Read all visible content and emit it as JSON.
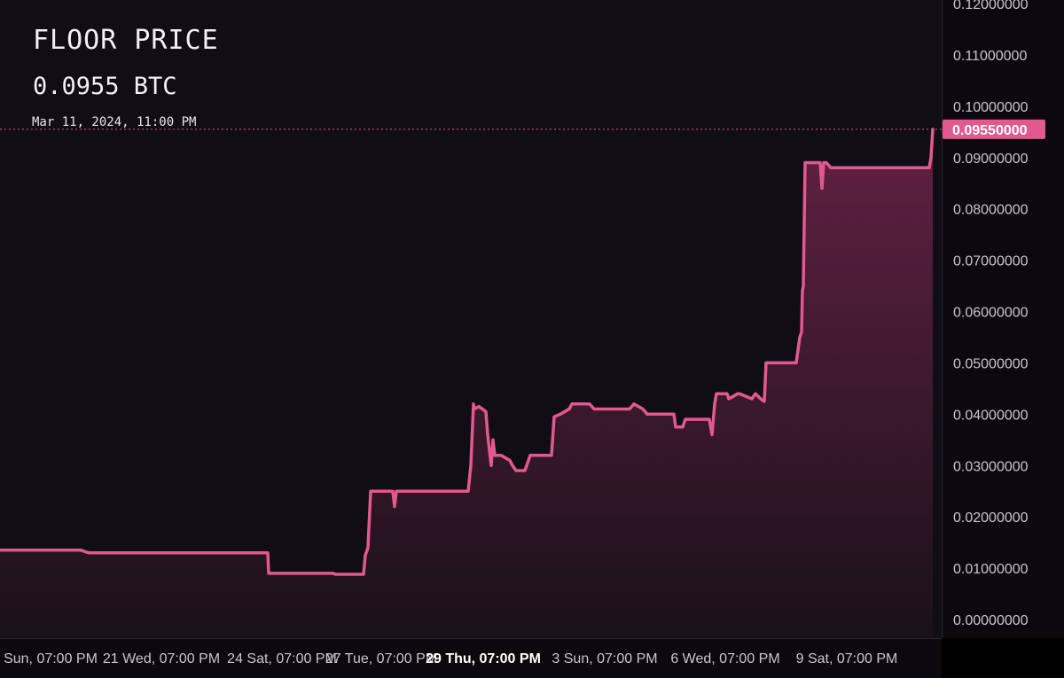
{
  "header": {
    "title": "FLOOR PRICE",
    "value": "0.0955 BTC",
    "timestamp": "Mar 11, 2024, 11:00 PM"
  },
  "current_price_label": "0.09550000",
  "colors": {
    "line": "#e0598f",
    "badge": "#e0598f",
    "fill_top": "#6b2347",
    "fill_bottom": "#1a111c",
    "plot_bg": "#110d16"
  },
  "chart_data": {
    "type": "area",
    "title": "FLOOR PRICE",
    "ylim": [
      0,
      0.12
    ],
    "yticks": [
      "0.00000000",
      "0.01000000",
      "0.02000000",
      "0.03000000",
      "0.04000000",
      "0.05000000",
      "0.06000000",
      "0.07000000",
      "0.08000000",
      "0.09000000",
      "0.10000000",
      "0.11000000",
      "0.12000000"
    ],
    "xlim": [
      0,
      1062
    ],
    "xticks": [
      {
        "x": 57,
        "label": "Sun, 07:00 PM",
        "bold": false
      },
      {
        "x": 182,
        "label": "21 Wed, 07:00 PM",
        "bold": false
      },
      {
        "x": 318,
        "label": "24 Sat, 07:00 PM",
        "bold": false
      },
      {
        "x": 430,
        "label": "27 Tue, 07:00 PM",
        "bold": false
      },
      {
        "x": 545,
        "label": "29 Thu, 07:00 PM",
        "bold": true
      },
      {
        "x": 682,
        "label": "3 Sun, 07:00 PM",
        "bold": false
      },
      {
        "x": 818,
        "label": "6 Wed, 07:00 PM",
        "bold": false
      },
      {
        "x": 955,
        "label": "9 Sat, 07:00 PM",
        "bold": false
      }
    ],
    "current_value": 0.0955,
    "x": [
      0,
      92,
      96,
      100,
      302,
      303,
      376,
      378,
      410,
      412,
      415,
      418,
      443,
      445,
      447,
      528,
      531,
      534,
      535,
      540,
      548,
      550,
      554,
      556,
      558,
      560,
      562,
      565,
      575,
      578,
      582,
      592,
      598,
      622,
      625,
      632,
      642,
      645,
      665,
      670,
      710,
      715,
      725,
      730,
      760,
      762,
      770,
      773,
      800,
      803,
      806,
      808,
      820,
      822,
      832,
      834,
      848,
      852,
      858,
      862,
      864,
      866,
      898,
      902,
      904,
      905,
      906,
      908,
      910,
      912,
      925,
      927,
      929,
      932,
      937,
      940,
      1048,
      1050,
      1052
    ],
    "y": [
      0.0135,
      0.0135,
      0.0132,
      0.013,
      0.013,
      0.009,
      0.009,
      0.0088,
      0.0088,
      0.0125,
      0.014,
      0.025,
      0.025,
      0.022,
      0.025,
      0.025,
      0.03,
      0.042,
      0.041,
      0.0415,
      0.0405,
      0.036,
      0.03,
      0.035,
      0.032,
      0.032,
      0.032,
      0.032,
      0.031,
      0.03,
      0.029,
      0.029,
      0.032,
      0.032,
      0.0395,
      0.04,
      0.041,
      0.042,
      0.042,
      0.041,
      0.041,
      0.042,
      0.041,
      0.04,
      0.04,
      0.0375,
      0.0375,
      0.039,
      0.039,
      0.036,
      0.042,
      0.044,
      0.044,
      0.043,
      0.044,
      0.044,
      0.043,
      0.044,
      0.043,
      0.0425,
      0.05,
      0.05,
      0.05,
      0.055,
      0.056,
      0.064,
      0.065,
      0.089,
      0.089,
      0.089,
      0.089,
      0.084,
      0.089,
      0.089,
      0.088,
      0.088,
      0.088,
      0.09,
      0.0955
    ]
  }
}
